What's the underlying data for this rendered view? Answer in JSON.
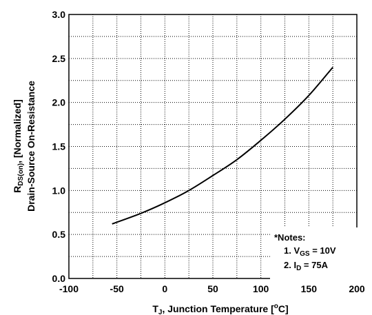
{
  "chart_data": {
    "type": "line",
    "xlabel": {
      "main": "T",
      "sub": "J",
      "rest": ", Junction Temperature [",
      "sup": "o",
      "end": "C]"
    },
    "ylabel": {
      "line1": {
        "main": "R",
        "sub": "DS(on)",
        "rest": ", [Normalized]"
      },
      "line2": "Drain-Source On-Resistance"
    },
    "xlim": [
      -100,
      200
    ],
    "ylim": [
      0.0,
      3.0
    ],
    "x_ticks": [
      -100,
      -50,
      0,
      50,
      100,
      150,
      200
    ],
    "x_tick_labels": [
      "-100",
      "-50",
      "0",
      "50",
      "100",
      "150",
      "200"
    ],
    "y_ticks": [
      0.0,
      0.5,
      1.0,
      1.5,
      2.0,
      2.5,
      3.0
    ],
    "y_tick_labels": [
      "0.0",
      "0.5",
      "1.0",
      "1.5",
      "2.0",
      "2.5",
      "3.0"
    ],
    "grid": true,
    "grid_minor_y": [
      0.25,
      0.75,
      1.25,
      1.75,
      2.25,
      2.75
    ],
    "grid_minor_x": [
      -75,
      -25,
      25,
      75,
      125,
      175
    ],
    "series": [
      {
        "x": [
          -55,
          -25,
          0,
          25,
          50,
          75,
          100,
          125,
          150,
          175
        ],
        "y": [
          0.62,
          0.74,
          0.86,
          1.0,
          1.17,
          1.35,
          1.57,
          1.81,
          2.08,
          2.4
        ]
      }
    ],
    "color": "#000000",
    "notes": {
      "title": "*Notes:",
      "items": [
        {
          "prefix": "1. V",
          "sub": "GS",
          "suffix": " = 10V"
        },
        {
          "prefix": "2. I",
          "sub": "D",
          "suffix": " = 75A"
        }
      ]
    }
  }
}
